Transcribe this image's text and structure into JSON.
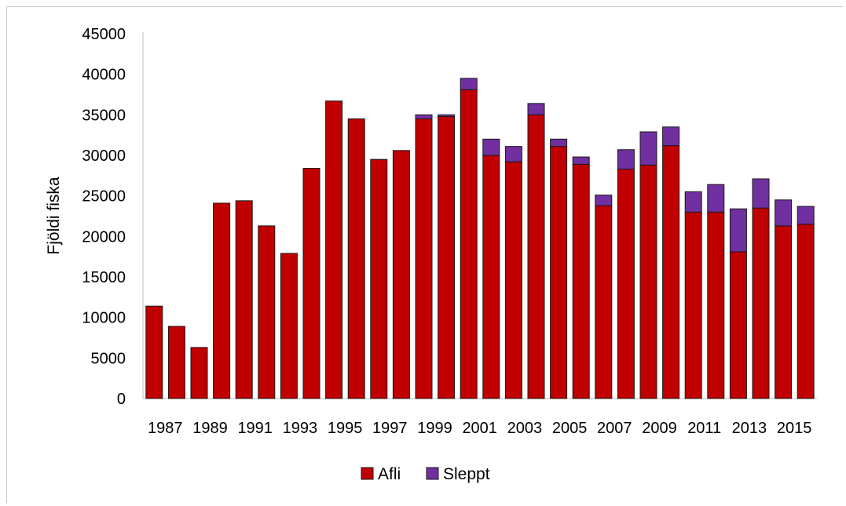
{
  "chart_data": {
    "type": "bar",
    "stacked": true,
    "ylabel": "Fjöldi fiska",
    "xlabel": "",
    "ylim": [
      0,
      45000
    ],
    "yticks": [
      0,
      5000,
      10000,
      15000,
      20000,
      25000,
      30000,
      35000,
      40000,
      45000
    ],
    "categories": [
      "1987",
      "1988",
      "1989",
      "1990",
      "1991",
      "1992",
      "1993",
      "1994",
      "1995",
      "1996",
      "1997",
      "1998",
      "1999",
      "2000",
      "2001",
      "2002",
      "2003",
      "2004",
      "2005",
      "2006",
      "2007",
      "2008",
      "2009",
      "2010",
      "2011",
      "2012",
      "2013",
      "2014",
      "2015",
      "2016"
    ],
    "xtick_labels": [
      "1987",
      "1989",
      "1991",
      "1993",
      "1995",
      "1997",
      "1999",
      "2001",
      "2003",
      "2005",
      "2007",
      "2009",
      "2011",
      "2013",
      "2015"
    ],
    "series": [
      {
        "name": "Afli",
        "color": "#c00000",
        "values": [
          11400,
          8900,
          6300,
          24100,
          24400,
          21300,
          17900,
          28400,
          36700,
          34500,
          29500,
          30600,
          34500,
          34800,
          38100,
          30000,
          29200,
          35000,
          31100,
          28900,
          23800,
          28300,
          28800,
          31200,
          23000,
          23000,
          18100,
          23500,
          21300,
          21500
        ]
      },
      {
        "name": "Sleppt",
        "color": "#7030a0",
        "values": [
          0,
          0,
          0,
          0,
          0,
          0,
          0,
          0,
          0,
          0,
          0,
          0,
          500,
          200,
          1400,
          2000,
          1900,
          1400,
          900,
          900,
          1300,
          2400,
          4100,
          2300,
          2500,
          3400,
          5300,
          3600,
          3200,
          2200
        ]
      }
    ],
    "legend": "bottom",
    "grid": false
  }
}
